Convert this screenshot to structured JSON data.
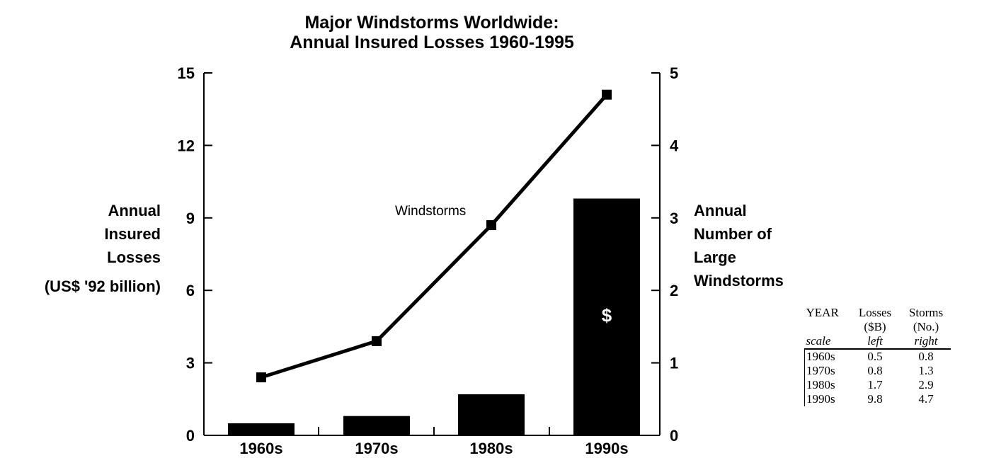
{
  "chart_data": {
    "type": "bar+line",
    "title": [
      "Major Windstorms Worldwide:",
      "Annual Insured Losses 1960-1995"
    ],
    "categories": [
      "1960s",
      "1970s",
      "1980s",
      "1990s"
    ],
    "series": [
      {
        "kind": "bar",
        "axis": "left",
        "values": [
          0.5,
          0.8,
          1.7,
          9.8
        ],
        "bar_label": "$"
      },
      {
        "name": "Windstorms",
        "kind": "line",
        "axis": "right",
        "values": [
          0.8,
          1.3,
          2.9,
          4.7
        ]
      }
    ],
    "y_left": {
      "label": [
        "Annual",
        "Insured",
        "Losses",
        "(US$ '92 billion)"
      ],
      "range": [
        0,
        15
      ],
      "ticks": [
        "0",
        "3",
        "6",
        "9",
        "12",
        "15"
      ]
    },
    "y_right": {
      "label": [
        "Annual",
        "Number of",
        "Large",
        "Windstorms"
      ],
      "range": [
        0,
        5
      ],
      "ticks": [
        "0",
        "1",
        "2",
        "3",
        "4",
        "5"
      ]
    },
    "grid": false,
    "colors": {
      "bars": "#000000",
      "line": "#000000"
    }
  },
  "table": {
    "header1": [
      "YEAR",
      "Losses",
      "Storms"
    ],
    "header2": [
      "",
      "($B)",
      "(No.)"
    ],
    "scale": [
      "scale",
      "left",
      "right"
    ],
    "rows": [
      [
        "1960s",
        "0.5",
        "0.8"
      ],
      [
        "1970s",
        "0.8",
        "1.3"
      ],
      [
        "1980s",
        "1.7",
        "2.9"
      ],
      [
        "1990s",
        "9.8",
        "4.7"
      ]
    ]
  }
}
